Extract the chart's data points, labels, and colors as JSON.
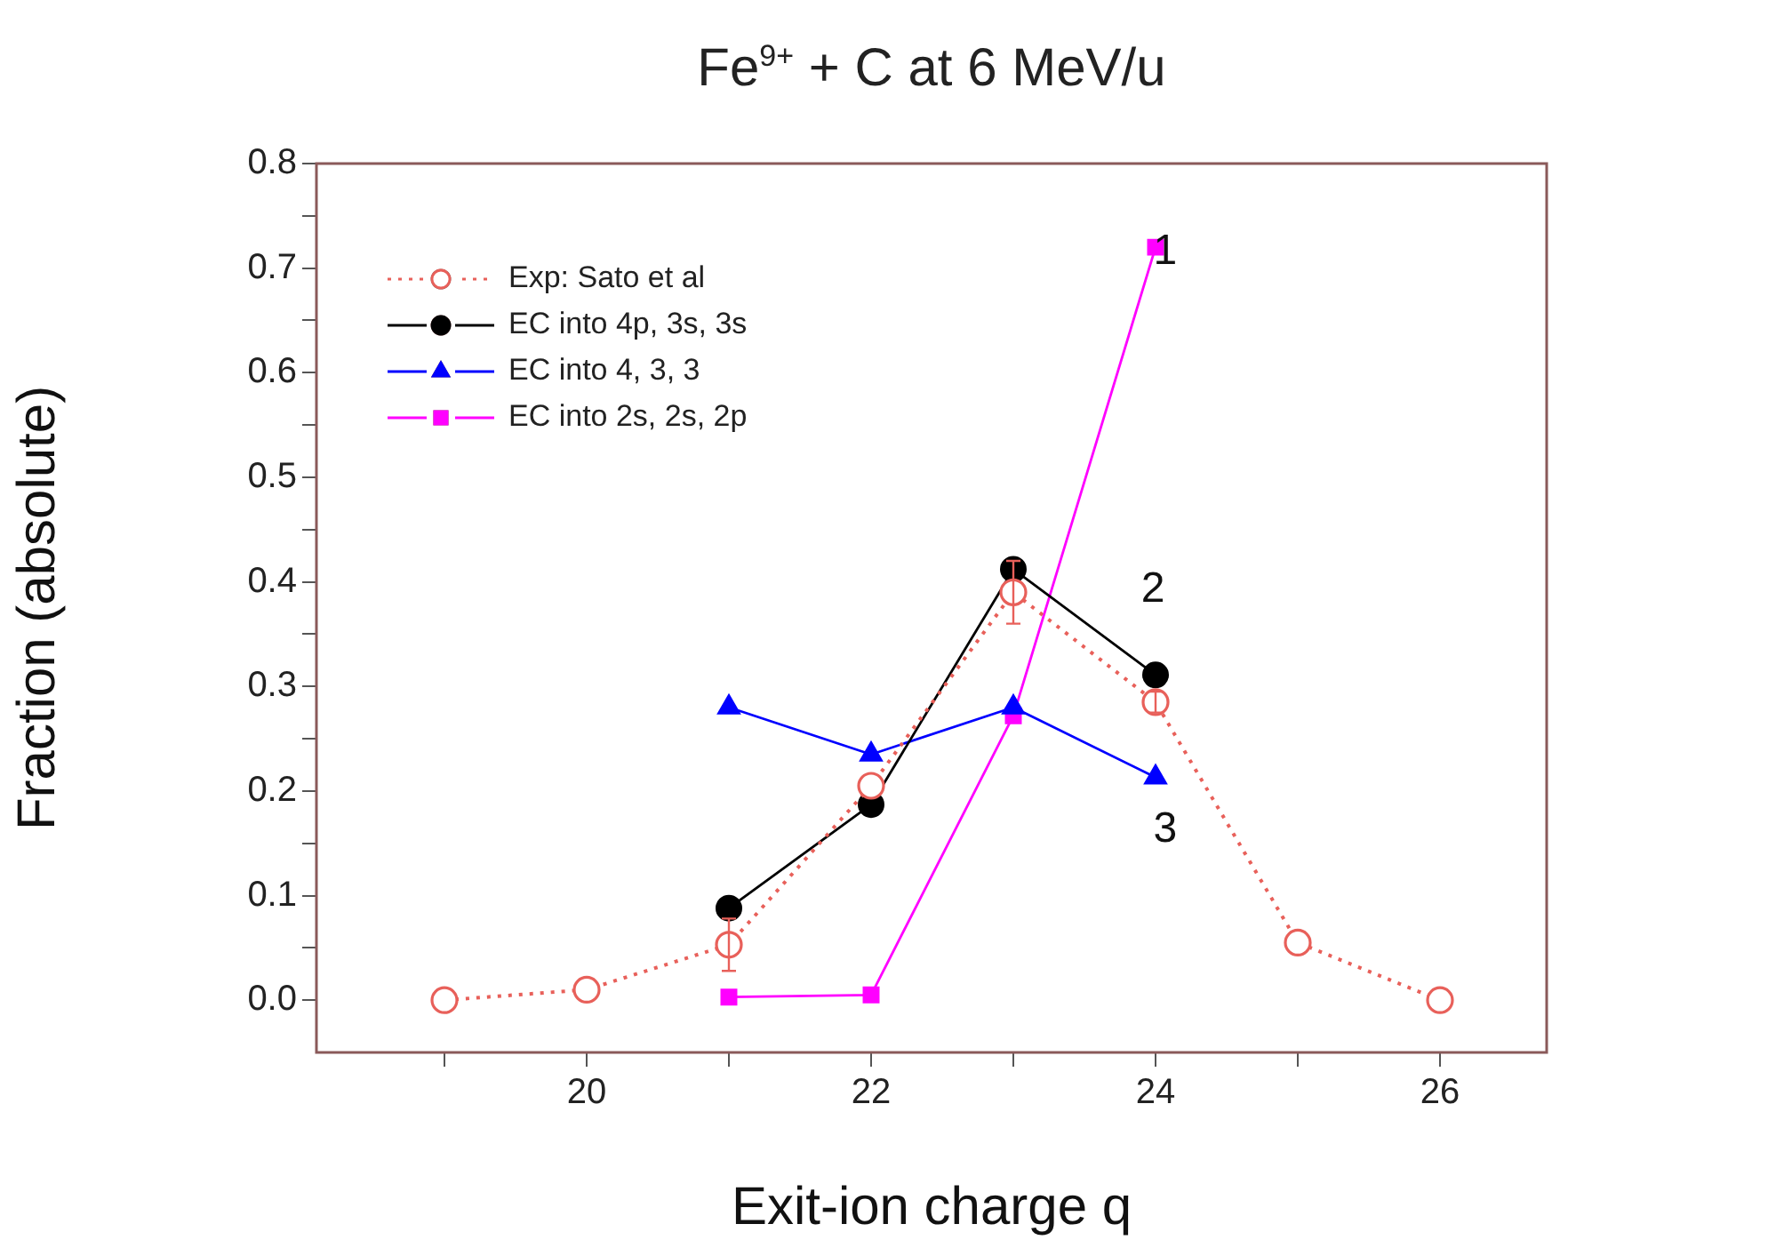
{
  "chart_data": {
    "type": "line",
    "title": "Fe$^{9+}$ + C at 6 MeV/u",
    "xlabel": "Exit-ion charge q",
    "ylabel": "Fraction (absolute)",
    "xlim": [
      18.1,
      26.75
    ],
    "xticks": [
      {
        "value": 19,
        "label": null
      },
      20,
      {
        "value": 21,
        "label": null
      },
      22,
      {
        "value": 23,
        "label": null
      },
      24,
      {
        "value": 25,
        "label": null
      },
      26
    ],
    "ylim": [
      -0.05,
      0.8
    ],
    "yticks": [
      {
        "value": 0,
        "label": "0.0"
      },
      {
        "value": 0.05,
        "label": null
      },
      0.1,
      {
        "value": 0.15,
        "label": null
      },
      0.2,
      {
        "value": 0.25,
        "label": null
      },
      0.3,
      {
        "value": 0.35,
        "label": null
      },
      0.4,
      {
        "value": 0.45,
        "label": null
      },
      0.5,
      {
        "value": 0.55,
        "label": null
      },
      0.6,
      {
        "value": 0.65,
        "label": null
      },
      0.7,
      {
        "value": 0.75,
        "label": null
      },
      0.8
    ],
    "grid": false,
    "legend": "top left",
    "series": [
      {
        "name": "Exp: Sato et al",
        "color": "#e8605a",
        "marker": "circle",
        "line_style": "dotted",
        "x": [
          19,
          20,
          21,
          22,
          23,
          24,
          25,
          26
        ],
        "values": [
          0.0,
          0.01,
          0.053,
          0.205,
          0.39,
          0.285,
          0.055,
          0.0
        ],
        "errors": [
          null,
          null,
          0.025,
          null,
          0.03,
          0.01,
          null,
          null
        ]
      },
      {
        "name": "EC into 4p, 3s, 3s",
        "color": "#000000",
        "marker": "circle",
        "line_style": "solid",
        "x": [
          21,
          22,
          23,
          24
        ],
        "values": [
          0.088,
          0.187,
          0.412,
          0.311
        ]
      },
      {
        "name": "EC into 4, 3, 3",
        "color": "#0000ff",
        "marker": "triangle",
        "line_style": "solid",
        "x": [
          21,
          22,
          23,
          24
        ],
        "values": [
          0.28,
          0.235,
          0.28,
          0.213
        ]
      },
      {
        "name": "EC into 2s, 2s, 2p",
        "color": "#ff00ff",
        "marker": "square",
        "line_style": "solid",
        "x": [
          21,
          22,
          23,
          24
        ],
        "values": [
          0.003,
          0.005,
          0.272,
          0.72
        ]
      }
    ],
    "annotations": [
      "1",
      "2",
      "3"
    ]
  }
}
